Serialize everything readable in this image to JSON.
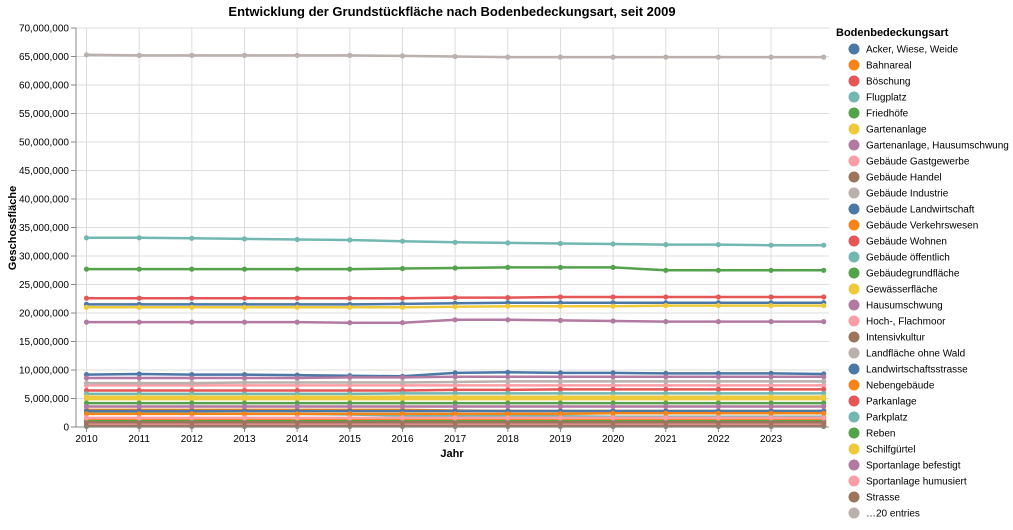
{
  "chart_data": {
    "type": "line",
    "title": "Entwicklung der Grundstückfläche nach Bodenbedeckungsart, seit 2009",
    "xlabel": "Jahr",
    "ylabel": "Geschossfläche",
    "x": [
      2010,
      2011,
      2012,
      2013,
      2014,
      2015,
      2016,
      2017,
      2018,
      2019,
      2020,
      2021,
      2022,
      2023,
      2024
    ],
    "x_ticks": [
      "2010",
      "2011",
      "2012",
      "2013",
      "2014",
      "2015",
      "2016",
      "2017",
      "2018",
      "2019",
      "2020",
      "2021",
      "2022",
      "2023"
    ],
    "xlim": [
      2009.8,
      2024.1
    ],
    "ylim": [
      0,
      70000000
    ],
    "y_ticks": [
      0,
      5000000,
      10000000,
      15000000,
      20000000,
      25000000,
      30000000,
      35000000,
      40000000,
      45000000,
      50000000,
      55000000,
      60000000,
      65000000,
      70000000
    ],
    "y_tick_labels": [
      "0",
      "5,000,000",
      "10,000,000",
      "15,000,000",
      "20,000,000",
      "25,000,000",
      "30,000,000",
      "35,000,000",
      "40,000,000",
      "45,000,000",
      "50,000,000",
      "55,000,000",
      "60,000,000",
      "65,000,000",
      "70,000,000"
    ],
    "grid": true,
    "legend": {
      "title": "Bodenbedeckungsart",
      "placement": "right",
      "more_label": "…20 entries"
    },
    "series": [
      {
        "name": "Acker, Wiese, Weide",
        "color": "#4c78a8",
        "values": [
          9200000,
          9300000,
          9200000,
          9200000,
          9100000,
          9000000,
          8900000,
          9500000,
          9600000,
          9500000,
          9500000,
          9400000,
          9400000,
          9400000,
          9300000
        ]
      },
      {
        "name": "Bahnareal",
        "color": "#f58518",
        "values": [
          1200000,
          1200000,
          1200000,
          1200000,
          1200000,
          1200000,
          1200000,
          1200000,
          1200000,
          1200000,
          1200000,
          1200000,
          1200000,
          1200000,
          1200000
        ]
      },
      {
        "name": "Böschung",
        "color": "#e45756",
        "values": [
          600000,
          600000,
          600000,
          600000,
          600000,
          600000,
          600000,
          600000,
          600000,
          600000,
          600000,
          600000,
          600000,
          600000,
          600000
        ]
      },
      {
        "name": "Flugplatz",
        "color": "#72b7b2",
        "values": [
          2500000,
          2400000,
          2400000,
          2300000,
          2300000,
          2200000,
          2000000,
          1900000,
          1900000,
          1900000,
          1800000,
          1800000,
          1800000,
          1800000,
          1800000
        ]
      },
      {
        "name": "Friedhöfe",
        "color": "#54a24b",
        "values": [
          1000000,
          1000000,
          1000000,
          1000000,
          1000000,
          1000000,
          1000000,
          1000000,
          1000000,
          1000000,
          1000000,
          1000000,
          1000000,
          1000000,
          1000000
        ]
      },
      {
        "name": "Gartenanlage",
        "color": "#eeca3b",
        "values": [
          4900000,
          4900000,
          4900000,
          4900000,
          4900000,
          4900000,
          4900000,
          4900000,
          4900000,
          4900000,
          4900000,
          4900000,
          4900000,
          4900000,
          4900000
        ]
      },
      {
        "name": "Gartenanlage, Hausumschwung",
        "color": "#b279a2",
        "values": [
          8600000,
          8600000,
          8600000,
          8600000,
          8600000,
          8700000,
          8700000,
          8800000,
          8800000,
          8800000,
          8800000,
          8800000,
          8800000,
          8800000,
          8800000
        ]
      },
      {
        "name": "Gebäude Gastgewerbe",
        "color": "#ff9da6",
        "values": [
          400000,
          400000,
          400000,
          400000,
          400000,
          400000,
          400000,
          400000,
          400000,
          400000,
          400000,
          400000,
          400000,
          400000,
          400000
        ]
      },
      {
        "name": "Gebäude Handel",
        "color": "#9d755d",
        "values": [
          800000,
          800000,
          800000,
          800000,
          800000,
          800000,
          800000,
          800000,
          800000,
          800000,
          800000,
          800000,
          800000,
          800000,
          800000
        ]
      },
      {
        "name": "Gebäude Industrie",
        "color": "#bab0ac",
        "values": [
          65300000,
          65200000,
          65200000,
          65200000,
          65200000,
          65200000,
          65100000,
          65000000,
          64900000,
          64900000,
          64900000,
          64900000,
          64900000,
          64900000,
          64900000
        ]
      },
      {
        "name": "Gebäude Landwirtschaft",
        "color": "#4c78a8",
        "values": [
          21500000,
          21500000,
          21500000,
          21500000,
          21500000,
          21500000,
          21600000,
          21700000,
          21800000,
          21800000,
          21800000,
          21800000,
          21800000,
          21800000,
          21800000
        ]
      },
      {
        "name": "Gebäude Verkehrswesen",
        "color": "#f58518",
        "values": [
          3000000,
          3000000,
          3000000,
          3000000,
          3000000,
          3000000,
          3000000,
          2900000,
          2800000,
          2800000,
          2800000,
          2800000,
          2800000,
          2800000,
          2800000
        ]
      },
      {
        "name": "Gebäude Wohnen",
        "color": "#e45756",
        "values": [
          22600000,
          22600000,
          22600000,
          22600000,
          22600000,
          22600000,
          22600000,
          22700000,
          22700000,
          22800000,
          22800000,
          22800000,
          22800000,
          22800000,
          22800000
        ]
      },
      {
        "name": "Gebäude öffentlich",
        "color": "#72b7b2",
        "values": [
          33200000,
          33200000,
          33100000,
          33000000,
          32900000,
          32800000,
          32600000,
          32400000,
          32300000,
          32200000,
          32100000,
          32000000,
          32000000,
          31900000,
          31900000
        ]
      },
      {
        "name": "Gebäudegrundfläche",
        "color": "#54a24b",
        "values": [
          27700000,
          27700000,
          27700000,
          27700000,
          27700000,
          27700000,
          27800000,
          27900000,
          28000000,
          28000000,
          28000000,
          27500000,
          27500000,
          27500000,
          27500000
        ]
      },
      {
        "name": "Gewässerfläche",
        "color": "#eeca3b",
        "values": [
          21000000,
          21000000,
          21000000,
          21000000,
          21000000,
          21000000,
          21000000,
          21100000,
          21200000,
          21200000,
          21200000,
          21300000,
          21300000,
          21300000,
          21300000
        ]
      },
      {
        "name": "Hausumschwung",
        "color": "#b279a2",
        "values": [
          18400000,
          18400000,
          18400000,
          18400000,
          18400000,
          18300000,
          18300000,
          18800000,
          18800000,
          18700000,
          18600000,
          18500000,
          18500000,
          18500000,
          18500000
        ]
      },
      {
        "name": "Hoch-, Flachmoor",
        "color": "#ff9da6",
        "values": [
          7300000,
          7300000,
          7300000,
          7300000,
          7300000,
          7300000,
          7300000,
          7300000,
          7300000,
          7300000,
          7300000,
          7300000,
          7300000,
          7300000,
          7300000
        ]
      },
      {
        "name": "Intensivkultur",
        "color": "#9d755d",
        "values": [
          100000,
          100000,
          100000,
          100000,
          100000,
          100000,
          100000,
          100000,
          100000,
          100000,
          100000,
          100000,
          100000,
          100000,
          100000
        ]
      },
      {
        "name": "Landfläche ohne Wald",
        "color": "#bab0ac",
        "values": [
          7700000,
          7700000,
          7700000,
          7800000,
          7800000,
          7800000,
          7800000,
          7900000,
          8000000,
          8000000,
          8000000,
          8000000,
          8000000,
          8000000,
          8000000
        ]
      },
      {
        "name": "Landwirtschaftsstrasse",
        "color": "#4c78a8",
        "values": [
          2800000,
          2800000,
          2800000,
          2800000,
          2800000,
          2800000,
          2800000,
          2800000,
          2800000,
          2800000,
          2800000,
          2800000,
          2800000,
          2800000,
          2800000
        ]
      },
      {
        "name": "Nebengebäude",
        "color": "#f58518",
        "values": [
          2300000,
          2300000,
          2300000,
          2300000,
          2300000,
          2300000,
          2300000,
          2300000,
          2300000,
          2300000,
          2400000,
          2400000,
          2400000,
          2400000,
          2400000
        ]
      },
      {
        "name": "Parkanlage",
        "color": "#e45756",
        "values": [
          6400000,
          6400000,
          6400000,
          6400000,
          6400000,
          6400000,
          6400000,
          6500000,
          6500000,
          6600000,
          6600000,
          6600000,
          6600000,
          6600000,
          6600000
        ]
      },
      {
        "name": "Parkplatz",
        "color": "#72b7b2",
        "values": [
          5800000,
          5800000,
          5800000,
          5800000,
          5800000,
          5800000,
          5900000,
          5900000,
          5900000,
          5900000,
          5900000,
          5900000,
          5900000,
          5900000,
          5900000
        ]
      },
      {
        "name": "Reben",
        "color": "#54a24b",
        "values": [
          4200000,
          4200000,
          4200000,
          4200000,
          4200000,
          4200000,
          4200000,
          4200000,
          4200000,
          4200000,
          4200000,
          4200000,
          4200000,
          4200000,
          4200000
        ]
      },
      {
        "name": "Schilfgürtel",
        "color": "#eeca3b",
        "values": [
          5300000,
          5300000,
          5300000,
          5300000,
          5300000,
          5300000,
          5300000,
          5300000,
          5300000,
          5300000,
          5300000,
          5300000,
          5300000,
          5300000,
          5300000
        ]
      },
      {
        "name": "Sportanlage befestigt",
        "color": "#b279a2",
        "values": [
          3600000,
          3600000,
          3600000,
          3600000,
          3600000,
          3600000,
          3600000,
          3600000,
          3600000,
          3600000,
          3600000,
          3600000,
          3600000,
          3600000,
          3600000
        ]
      },
      {
        "name": "Sportanlage humusiert",
        "color": "#ff9da6",
        "values": [
          1600000,
          1600000,
          1600000,
          1600000,
          1600000,
          1600000,
          1600000,
          1600000,
          1600000,
          1600000,
          1600000,
          1600000,
          1600000,
          1600000,
          1600000
        ]
      },
      {
        "name": "Strasse",
        "color": "#9d755d",
        "values": [
          200000,
          200000,
          200000,
          200000,
          200000,
          200000,
          200000,
          200000,
          200000,
          200000,
          200000,
          200000,
          200000,
          200000,
          200000
        ]
      }
    ]
  }
}
